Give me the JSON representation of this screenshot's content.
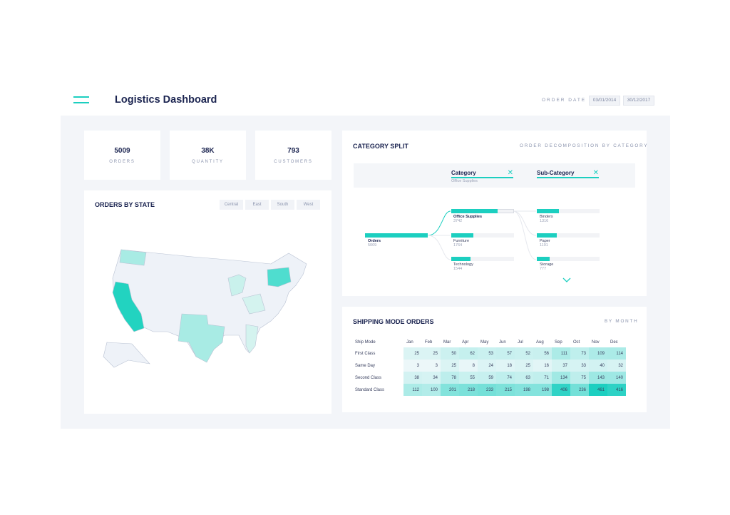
{
  "header": {
    "title": "Logistics Dashboard",
    "order_date_label": "ORDER DATE",
    "date_from": "03/01/2014",
    "date_to": "30/12/2017"
  },
  "kpis": [
    {
      "value": "5009",
      "label": "ORDERS"
    },
    {
      "value": "38K",
      "label": "QUANTITY"
    },
    {
      "value": "793",
      "label": "CUSTOMERS"
    }
  ],
  "orders_by_state": {
    "title": "ORDERS BY STATE",
    "regions": [
      "Central",
      "East",
      "South",
      "West"
    ]
  },
  "category_split": {
    "title": "CATEGORY SPLIT",
    "subtitle": "ORDER DECOMPOSITION BY CATEGORY",
    "levels": [
      {
        "label": "Category",
        "selected": "Office Supplies"
      },
      {
        "label": "Sub-Category"
      }
    ],
    "root": {
      "name": "Orders",
      "value": 5009
    },
    "categories": [
      {
        "name": "Office Supplies",
        "value": 3742
      },
      {
        "name": "Furniture",
        "value": 1764
      },
      {
        "name": "Technology",
        "value": 1544
      }
    ],
    "subcategories": [
      {
        "name": "Binders",
        "value": 1316
      },
      {
        "name": "Paper",
        "value": 1191
      },
      {
        "name": "Storage",
        "value": 777
      }
    ]
  },
  "shipping": {
    "title": "SHIPPING MODE ORDERS",
    "subtitle": "BY MONTH",
    "row_header": "Ship Mode",
    "months": [
      "Jan",
      "Feb",
      "Mar",
      "Apr",
      "May",
      "Jun",
      "Jul",
      "Aug",
      "Sep",
      "Oct",
      "Nov",
      "Dec"
    ],
    "rows": [
      {
        "mode": "First Class",
        "values": [
          25,
          25,
          50,
          62,
          53,
          57,
          52,
          56,
          111,
          73,
          109,
          114
        ]
      },
      {
        "mode": "Same Day",
        "values": [
          3,
          3,
          25,
          8,
          24,
          18,
          25,
          16,
          37,
          33,
          40,
          32
        ]
      },
      {
        "mode": "Second Class",
        "values": [
          38,
          34,
          78,
          55,
          59,
          74,
          63,
          71,
          134,
          75,
          143,
          140
        ]
      },
      {
        "mode": "Standard Class",
        "values": [
          112,
          100,
          201,
          218,
          233,
          215,
          198,
          198,
          406,
          236,
          461,
          416
        ]
      }
    ]
  },
  "colors": {
    "accent": "#1ccfc0",
    "text": "#1b2450"
  }
}
